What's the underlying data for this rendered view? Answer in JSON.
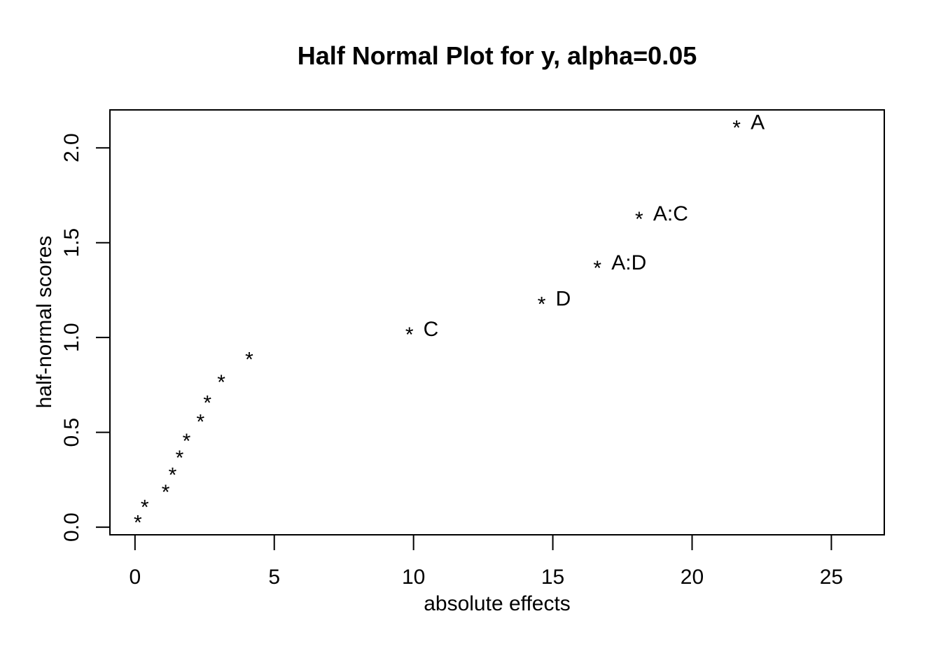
{
  "chart_data": {
    "type": "scatter",
    "title": "Half Normal Plot for y, alpha=0.05",
    "xlabel": "absolute effects",
    "ylabel": "half-normal scores",
    "xlim": [
      -0.9,
      26.9
    ],
    "ylim": [
      -0.04,
      2.2
    ],
    "xticks": [
      0,
      5,
      10,
      15,
      20,
      25
    ],
    "xtick_labels": [
      "0",
      "5",
      "10",
      "15",
      "20",
      "25"
    ],
    "yticks": [
      0.0,
      0.5,
      1.0,
      1.5,
      2.0
    ],
    "ytick_labels": [
      "0.0",
      "0.5",
      "1.0",
      "1.5",
      "2.0"
    ],
    "grid": false,
    "marker": "*",
    "points": [
      {
        "x": 0.1,
        "y": 0.04,
        "label": ""
      },
      {
        "x": 0.35,
        "y": 0.12,
        "label": ""
      },
      {
        "x": 1.1,
        "y": 0.2,
        "label": ""
      },
      {
        "x": 1.35,
        "y": 0.29,
        "label": ""
      },
      {
        "x": 1.6,
        "y": 0.38,
        "label": ""
      },
      {
        "x": 1.85,
        "y": 0.47,
        "label": ""
      },
      {
        "x": 2.35,
        "y": 0.57,
        "label": ""
      },
      {
        "x": 2.6,
        "y": 0.67,
        "label": ""
      },
      {
        "x": 3.1,
        "y": 0.78,
        "label": ""
      },
      {
        "x": 4.1,
        "y": 0.9,
        "label": ""
      },
      {
        "x": 9.85,
        "y": 1.03,
        "label": "C"
      },
      {
        "x": 14.6,
        "y": 1.19,
        "label": "D"
      },
      {
        "x": 16.6,
        "y": 1.38,
        "label": "A:D"
      },
      {
        "x": 18.1,
        "y": 1.64,
        "label": "A:C"
      },
      {
        "x": 21.6,
        "y": 2.12,
        "label": "A"
      }
    ]
  }
}
